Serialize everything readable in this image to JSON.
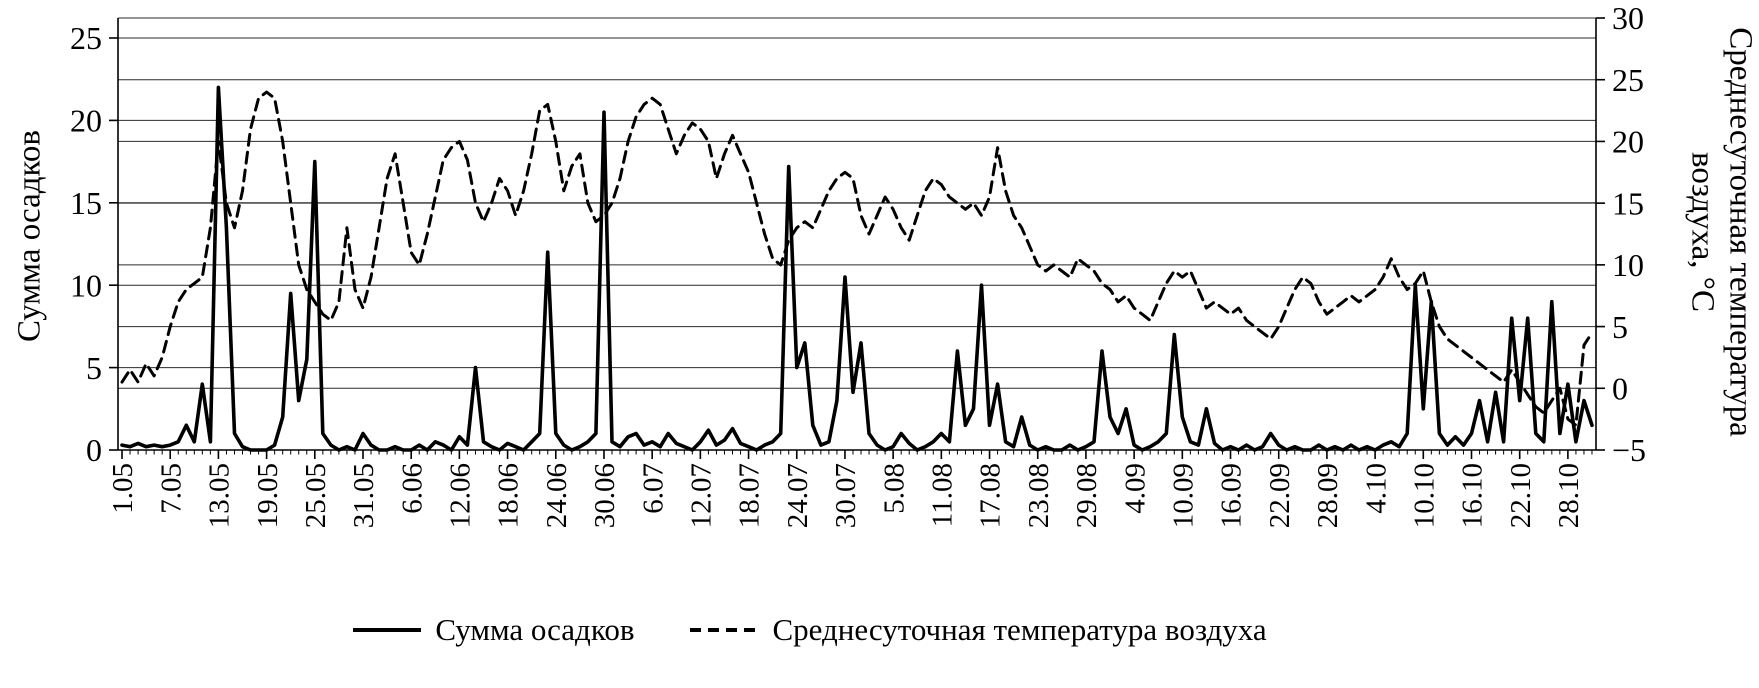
{
  "figure": {
    "background": "#ffffff",
    "line_color": "#000000",
    "grid_color": "#2b2b2b",
    "text_color": "#000000"
  },
  "chart_data": {
    "type": "line",
    "title": "",
    "x_axis": {
      "unit": "date (day.month)",
      "n_points": 184,
      "label_every_n_points": 6,
      "tick_labels": [
        "1.05",
        "7.05",
        "13.05",
        "19.05",
        "25.05",
        "31.05",
        "6.06",
        "12.06",
        "18.06",
        "24.06",
        "30.06",
        "6.07",
        "12.07",
        "18.07",
        "24.07",
        "30.07",
        "5.08",
        "11.08",
        "17.08",
        "23.08",
        "29.08",
        "4.09",
        "10.09",
        "16.09",
        "22.09",
        "28.09",
        "4.10",
        "10.10",
        "16.10",
        "22.10",
        "28.10"
      ]
    },
    "left_axis": {
      "title": "Сумма осадков",
      "min": 0,
      "max": 25,
      "ticks": [
        0,
        5,
        10,
        15,
        20,
        25
      ]
    },
    "right_axis": {
      "title_line1": "Среднесуточная температура",
      "title_line2": "воздуха, °С",
      "min": -5,
      "max": 30,
      "ticks": [
        -5,
        0,
        5,
        10,
        15,
        20,
        25,
        30
      ]
    },
    "legend": [
      {
        "label": "Сумма осадков",
        "style": "solid"
      },
      {
        "label": "Среднесуточная температура воздуха",
        "style": "dashed"
      }
    ],
    "series": [
      {
        "name": "Сумма осадков",
        "axis": "left",
        "style": "solid",
        "values": [
          0.3,
          0.2,
          0.4,
          0.2,
          0.3,
          0.2,
          0.3,
          0.5,
          1.5,
          0.5,
          4,
          0.5,
          22,
          13.5,
          1,
          0.2,
          0,
          0,
          0,
          0.3,
          2,
          9.5,
          3,
          5.5,
          17.5,
          1,
          0.3,
          0,
          0.2,
          0,
          1,
          0.3,
          0,
          0,
          0.2,
          0,
          0,
          0.3,
          0,
          0.5,
          0.3,
          0,
          0.8,
          0.3,
          5,
          0.5,
          0.2,
          0,
          0.4,
          0.2,
          0,
          0.5,
          1,
          12,
          1,
          0.3,
          0,
          0.2,
          0.5,
          1,
          20.5,
          0.5,
          0.2,
          0.8,
          1,
          0.3,
          0.5,
          0.2,
          1,
          0.4,
          0.2,
          0,
          0.5,
          1.2,
          0.3,
          0.6,
          1.3,
          0.4,
          0.2,
          0,
          0.3,
          0.5,
          1,
          17.2,
          5,
          6.5,
          1.5,
          0.3,
          0.5,
          3,
          10.5,
          3.5,
          6.5,
          1,
          0.3,
          0,
          0.2,
          1,
          0.4,
          0,
          0.2,
          0.5,
          1,
          0.5,
          6,
          1.5,
          2.5,
          10,
          1.5,
          4,
          0.5,
          0.2,
          2,
          0.3,
          0,
          0.2,
          0,
          0,
          0.3,
          0,
          0.2,
          0.5,
          6,
          2,
          1,
          2.5,
          0.3,
          0,
          0.2,
          0.5,
          1,
          7,
          2,
          0.5,
          0.3,
          2.5,
          0.4,
          0,
          0.2,
          0,
          0.3,
          0,
          0.2,
          1,
          0.3,
          0,
          0.2,
          0,
          0,
          0.3,
          0,
          0.2,
          0,
          0.3,
          0,
          0.2,
          0,
          0.3,
          0.5,
          0.2,
          1,
          10,
          2.5,
          9,
          1,
          0.3,
          0.8,
          0.3,
          1,
          3,
          0.5,
          3.5,
          0.5,
          8,
          3,
          8,
          1,
          0.5,
          9,
          1,
          4,
          0.5,
          3,
          1.5
        ]
      },
      {
        "name": "Среднесуточная температура воздуха",
        "axis": "right",
        "style": "dashed",
        "values": [
          0.5,
          1.5,
          0.5,
          2,
          1,
          2.5,
          5,
          7,
          8,
          8.5,
          9,
          13,
          20,
          15,
          13,
          16,
          21,
          23.5,
          24,
          23.5,
          20,
          15,
          10,
          8,
          7,
          6,
          5.5,
          7,
          13,
          8,
          6.5,
          9,
          13,
          17,
          19,
          15,
          11,
          10,
          12.5,
          15.5,
          18.5,
          19.5,
          20,
          18.5,
          15,
          13.5,
          15,
          17,
          16,
          14,
          16,
          19,
          22.5,
          23,
          20,
          16,
          18,
          19,
          15,
          13.5,
          14,
          15,
          17,
          20,
          22,
          23,
          23.5,
          23,
          21,
          19,
          20.5,
          21.5,
          21,
          20,
          17,
          19,
          20.5,
          19,
          17.5,
          15,
          12.5,
          10.5,
          10,
          12,
          13,
          13.5,
          13,
          14.5,
          16,
          17,
          17.5,
          17,
          14,
          12.5,
          14,
          15.5,
          14.5,
          13,
          12,
          14,
          16,
          17,
          16.5,
          15.5,
          15,
          14.5,
          15,
          14,
          15.5,
          19.5,
          16,
          14,
          13,
          11.5,
          10,
          9.5,
          10,
          9.5,
          9,
          10.5,
          10,
          9.5,
          8.5,
          8,
          7,
          7.5,
          6.5,
          6,
          5.5,
          7,
          8.5,
          9.5,
          9,
          9.5,
          8,
          6.5,
          7,
          6.5,
          6,
          6.5,
          5.5,
          5,
          4.5,
          4,
          5,
          6.5,
          8,
          9,
          8.5,
          7,
          6,
          6.5,
          7,
          7.5,
          7,
          7.5,
          8,
          9,
          10.5,
          9,
          8,
          8.5,
          9.5,
          7,
          5,
          4,
          3.5,
          3,
          2.5,
          2,
          1.5,
          1,
          0.5,
          1.5,
          0.5,
          -0.5,
          -1.5,
          -2,
          -1,
          0,
          -2.5,
          -3,
          3.5,
          4.5
        ]
      }
    ]
  }
}
